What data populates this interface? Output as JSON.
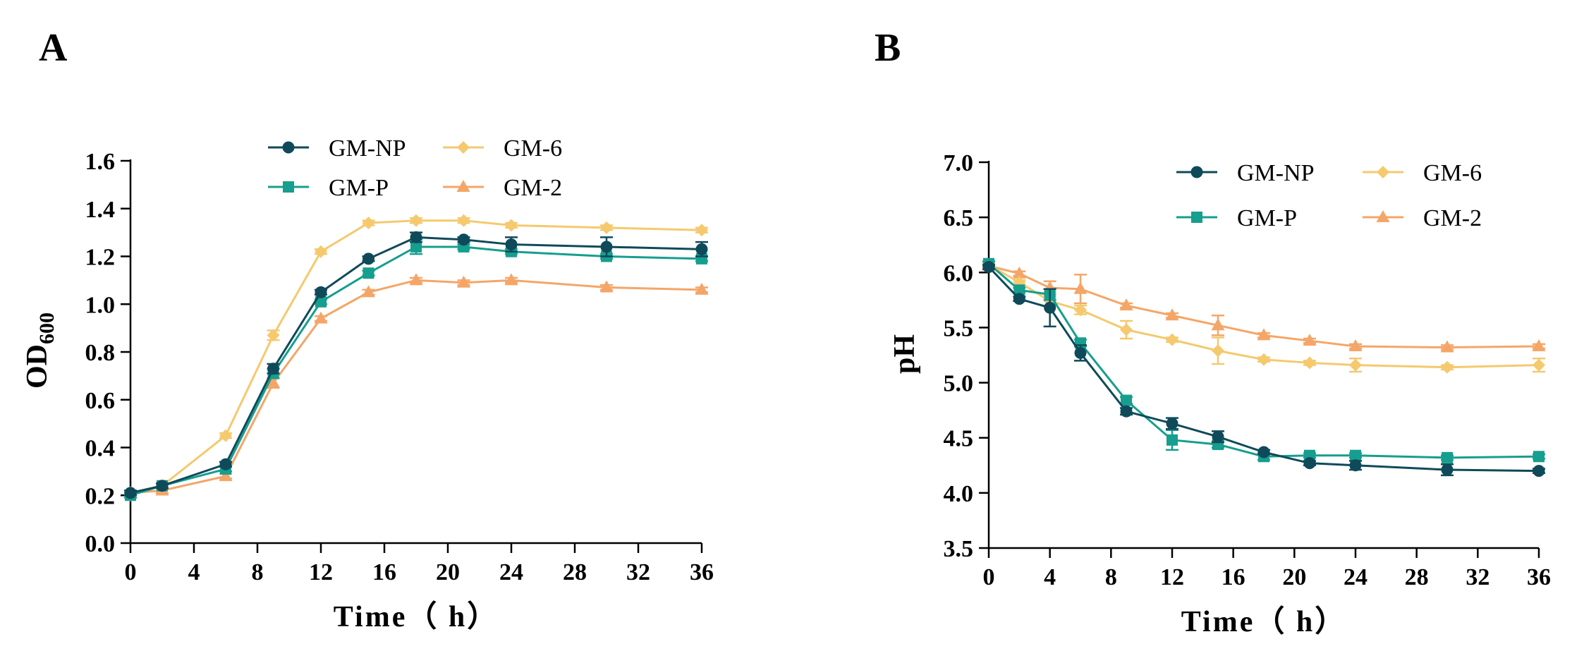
{
  "colors": {
    "GM-NP": "#0f4a5a",
    "GM-P": "#169e8e",
    "GM-6": "#f5c96e",
    "GM-2": "#f4a668"
  },
  "chart_data": [
    {
      "type": "line",
      "panel_label": "A",
      "title": "",
      "xlabel": "Time（ h）",
      "ylabel_main": "OD",
      "ylabel_sub": "600",
      "xlim": [
        0,
        36
      ],
      "ylim": [
        0,
        1.6
      ],
      "xticks": [
        0,
        4,
        8,
        12,
        16,
        20,
        24,
        28,
        32,
        36
      ],
      "xtick_labels": [
        "0",
        "4",
        "8",
        "12",
        "16",
        "20",
        "24",
        "28",
        "32",
        "36"
      ],
      "yticks": [
        0,
        0.2,
        0.4,
        0.6,
        0.8,
        1.0,
        1.2,
        1.4,
        1.6
      ],
      "ytick_labels": [
        "0.0",
        "0.2",
        "0.4",
        "0.6",
        "0.8",
        "1.0",
        "1.2",
        "1.4",
        "1.6"
      ],
      "legend_position": "top-center",
      "x": [
        0,
        2,
        6,
        9,
        12,
        15,
        18,
        21,
        24,
        30,
        36
      ],
      "series": [
        {
          "name": "GM-NP",
          "marker": "circle",
          "values": [
            0.21,
            0.24,
            0.33,
            0.73,
            1.05,
            1.19,
            1.28,
            1.27,
            1.25,
            1.24,
            1.23
          ],
          "errors": [
            0.01,
            0.01,
            0.01,
            0.02,
            0.01,
            0.01,
            0.02,
            0.01,
            0.03,
            0.04,
            0.03
          ]
        },
        {
          "name": "GM-P",
          "marker": "square",
          "values": [
            0.2,
            0.24,
            0.31,
            0.71,
            1.01,
            1.13,
            1.24,
            1.24,
            1.22,
            1.2,
            1.19
          ],
          "errors": [
            0.01,
            0.01,
            0.01,
            0.02,
            0.01,
            0.01,
            0.03,
            0.01,
            0.01,
            0.01,
            0.01
          ]
        },
        {
          "name": "GM-6",
          "marker": "diamond",
          "values": [
            0.2,
            0.24,
            0.45,
            0.87,
            1.22,
            1.34,
            1.35,
            1.35,
            1.33,
            1.32,
            1.31
          ],
          "errors": [
            0.01,
            0.01,
            0.01,
            0.02,
            0.01,
            0.01,
            0.01,
            0.01,
            0.01,
            0.01,
            0.01
          ]
        },
        {
          "name": "GM-2",
          "marker": "triangle",
          "values": [
            0.21,
            0.22,
            0.28,
            0.67,
            0.94,
            1.05,
            1.1,
            1.09,
            1.1,
            1.07,
            1.06
          ],
          "errors": [
            0.01,
            0.01,
            0.01,
            0.02,
            0.01,
            0.01,
            0.01,
            0.01,
            0.01,
            0.01,
            0.01
          ]
        }
      ]
    },
    {
      "type": "line",
      "panel_label": "B",
      "title": "",
      "xlabel": "Time（ h）",
      "ylabel_main": "pH",
      "ylabel_sub": "",
      "xlim": [
        0,
        36
      ],
      "ylim": [
        3.5,
        7.0
      ],
      "xticks": [
        0,
        4,
        8,
        12,
        16,
        20,
        24,
        28,
        32,
        36
      ],
      "xtick_labels": [
        "0",
        "4",
        "8",
        "12",
        "16",
        "20",
        "24",
        "28",
        "32",
        "36"
      ],
      "yticks": [
        3.5,
        4.0,
        4.5,
        5.0,
        5.5,
        6.0,
        6.5,
        7.0
      ],
      "ytick_labels": [
        "3.5",
        "4.0",
        "4.5",
        "5.0",
        "5.5",
        "6.0",
        "6.5",
        "7.0"
      ],
      "legend_position": "top-right",
      "x": [
        0,
        2,
        4,
        6,
        9,
        12,
        15,
        18,
        21,
        24,
        30,
        36
      ],
      "series": [
        {
          "name": "GM-NP",
          "marker": "circle",
          "values": [
            6.05,
            5.76,
            5.68,
            5.27,
            4.74,
            4.63,
            4.51,
            4.37,
            4.27,
            4.25,
            4.21,
            4.2
          ],
          "errors": [
            0.02,
            0.02,
            0.17,
            0.07,
            0.03,
            0.05,
            0.05,
            0.02,
            0.02,
            0.04,
            0.05,
            0.02
          ]
        },
        {
          "name": "GM-P",
          "marker": "square",
          "values": [
            6.08,
            5.84,
            5.8,
            5.36,
            4.84,
            4.48,
            4.44,
            4.33,
            4.34,
            4.34,
            4.32,
            4.33
          ],
          "errors": [
            0.02,
            0.02,
            0.05,
            0.03,
            0.03,
            0.09,
            0.03,
            0.03,
            0.02,
            0.02,
            0.02,
            0.02
          ]
        },
        {
          "name": "GM-6",
          "marker": "diamond",
          "values": [
            6.07,
            5.91,
            5.74,
            5.66,
            5.48,
            5.39,
            5.29,
            5.21,
            5.18,
            5.16,
            5.14,
            5.16
          ],
          "errors": [
            0.02,
            0.02,
            0.04,
            0.04,
            0.08,
            0.02,
            0.12,
            0.02,
            0.02,
            0.06,
            0.02,
            0.06
          ]
        },
        {
          "name": "GM-2",
          "marker": "triangle",
          "values": [
            6.06,
            5.99,
            5.86,
            5.85,
            5.7,
            5.61,
            5.52,
            5.43,
            5.38,
            5.33,
            5.32,
            5.33
          ],
          "errors": [
            0.02,
            0.02,
            0.06,
            0.13,
            0.02,
            0.02,
            0.09,
            0.02,
            0.02,
            0.02,
            0.02,
            0.02
          ]
        }
      ]
    }
  ]
}
